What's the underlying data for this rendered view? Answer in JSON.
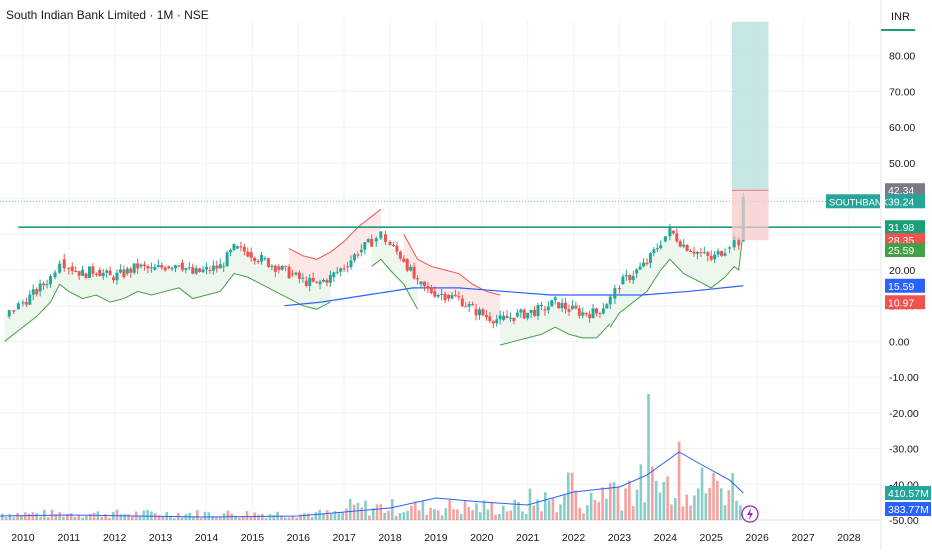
{
  "header": {
    "title": "South Indian Bank Limited · 1M · NSE",
    "currency": "INR"
  },
  "colors": {
    "up": "#26a69a",
    "down": "#ef5350",
    "support": "#1b9e77",
    "trend_fill_up": "#e8f5e9",
    "trend_fill_down": "#fde2e2",
    "ma": "#2962ff",
    "target": "#b2dfdb",
    "stop": "#f8c9c9"
  },
  "chart_data": {
    "type": "candlestick",
    "x_ticks": [
      "2010",
      "2011",
      "2012",
      "2013",
      "2014",
      "2015",
      "2016",
      "2017",
      "2018",
      "2019",
      "2020",
      "2021",
      "2022",
      "2023",
      "2024",
      "2025",
      "2026",
      "2027",
      "2028"
    ],
    "y_ticks": [
      "80.00",
      "70.00",
      "60.00",
      "50.00",
      "40.00",
      "30.00",
      "20.00",
      "10.00",
      "0.00",
      "-10.00",
      "-20.00",
      "-30.00",
      "-40.00",
      "-50.00"
    ],
    "ylim": [
      -50,
      90
    ],
    "horizontal_line": 31.98,
    "last_price": 39.24,
    "price_series": [
      [
        2009.6,
        7
      ],
      [
        2009.8,
        9
      ],
      [
        2010.0,
        11
      ],
      [
        2010.3,
        14
      ],
      [
        2010.6,
        18
      ],
      [
        2010.8,
        23
      ],
      [
        2011.0,
        21
      ],
      [
        2011.3,
        19
      ],
      [
        2011.6,
        20
      ],
      [
        2011.9,
        18
      ],
      [
        2012.2,
        19
      ],
      [
        2012.5,
        21
      ],
      [
        2012.8,
        20
      ],
      [
        2013.1,
        21
      ],
      [
        2013.4,
        22
      ],
      [
        2013.7,
        19
      ],
      [
        2014.0,
        20
      ],
      [
        2014.3,
        21
      ],
      [
        2014.6,
        26
      ],
      [
        2014.9,
        25
      ],
      [
        2015.2,
        23
      ],
      [
        2015.5,
        21
      ],
      [
        2015.8,
        19
      ],
      [
        2016.1,
        17
      ],
      [
        2016.4,
        16
      ],
      [
        2016.7,
        18
      ],
      [
        2017.0,
        21
      ],
      [
        2017.3,
        25
      ],
      [
        2017.6,
        28
      ],
      [
        2017.8,
        30
      ],
      [
        2018.0,
        27
      ],
      [
        2018.3,
        23
      ],
      [
        2018.6,
        16
      ],
      [
        2018.9,
        14
      ],
      [
        2019.2,
        13
      ],
      [
        2019.5,
        12
      ],
      [
        2019.8,
        9
      ],
      [
        2020.1,
        7
      ],
      [
        2020.4,
        6
      ],
      [
        2020.7,
        7
      ],
      [
        2021.0,
        8
      ],
      [
        2021.3,
        9
      ],
      [
        2021.6,
        11
      ],
      [
        2021.9,
        9
      ],
      [
        2022.2,
        8
      ],
      [
        2022.5,
        8
      ],
      [
        2022.8,
        12
      ],
      [
        2023.0,
        16
      ],
      [
        2023.3,
        19
      ],
      [
        2023.6,
        22
      ],
      [
        2023.9,
        28
      ],
      [
        2024.1,
        31
      ],
      [
        2024.4,
        27
      ],
      [
        2024.7,
        25
      ],
      [
        2025.0,
        23
      ],
      [
        2025.3,
        26
      ],
      [
        2025.5,
        29
      ],
      [
        2025.6,
        28
      ],
      [
        2025.7,
        39.24
      ]
    ],
    "ma_series": [
      [
        2015.7,
        10
      ],
      [
        2016.5,
        11
      ],
      [
        2017.5,
        13
      ],
      [
        2018.5,
        15
      ],
      [
        2019.5,
        15
      ],
      [
        2020.5,
        14
      ],
      [
        2021.5,
        13
      ],
      [
        2022.5,
        13
      ],
      [
        2023.5,
        13
      ],
      [
        2024.5,
        14
      ],
      [
        2025.7,
        15.59
      ]
    ],
    "labels": {
      "ticker": "SOUTHBANK",
      "price": "39.24",
      "p1": "42.34",
      "p2": "31.98",
      "p3": "28.35",
      "p4": "25.59",
      "p5": "15.59",
      "p6": "10.97",
      "vol1": "410.57M",
      "vol2": "383.77M"
    }
  }
}
